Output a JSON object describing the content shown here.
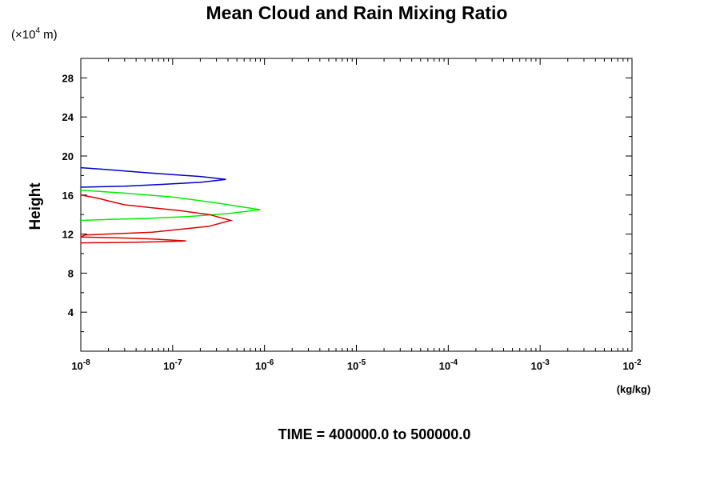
{
  "chart_data": {
    "type": "line",
    "title": "Mean Cloud and Rain Mixing Ratio",
    "ylabel": "Height",
    "y_scale_label": {
      "prefix": "(×10",
      "exponent": "4",
      "suffix": " m)"
    },
    "xlabel": "(kg/kg)",
    "x_scale": "log",
    "xlim": [
      1e-08,
      0.01
    ],
    "ylim": [
      0,
      30
    ],
    "x_ticks": [
      {
        "value": 1e-08,
        "base": "10",
        "exp": "-8"
      },
      {
        "value": 1e-07,
        "base": "10",
        "exp": "-7"
      },
      {
        "value": 1e-06,
        "base": "10",
        "exp": "-6"
      },
      {
        "value": 1e-05,
        "base": "10",
        "exp": "-5"
      },
      {
        "value": 0.0001,
        "base": "10",
        "exp": "-4"
      },
      {
        "value": 0.001,
        "base": "10",
        "exp": "-3"
      },
      {
        "value": 0.01,
        "base": "10",
        "exp": "-2"
      }
    ],
    "y_ticks": [
      {
        "value": 4,
        "label": "4"
      },
      {
        "value": 8,
        "label": "8"
      },
      {
        "value": 12,
        "label": "12"
      },
      {
        "value": 16,
        "label": "16"
      },
      {
        "value": 20,
        "label": "20"
      },
      {
        "value": 24,
        "label": "24"
      },
      {
        "value": 28,
        "label": "28"
      }
    ],
    "grid": false,
    "legend": "none",
    "series": [
      {
        "color": "#0000cc",
        "points": [
          [
            1e-08,
            18.8
          ],
          [
            2e-08,
            18.6
          ],
          [
            5e-08,
            18.3
          ],
          [
            1e-07,
            18.1
          ],
          [
            2e-07,
            17.9
          ],
          [
            3.8e-07,
            17.6
          ],
          [
            2e-07,
            17.3
          ],
          [
            8e-08,
            17.1
          ],
          [
            3e-08,
            16.9
          ],
          [
            1e-08,
            16.8
          ]
        ]
      },
      {
        "color": "#00ee00",
        "points": [
          [
            1e-08,
            16.5
          ],
          [
            3e-08,
            16.2
          ],
          [
            1e-07,
            15.8
          ],
          [
            3e-07,
            15.2
          ],
          [
            9e-07,
            14.5
          ],
          [
            4e-07,
            14.1
          ],
          [
            1.5e-07,
            13.8
          ],
          [
            5e-08,
            13.6
          ],
          [
            2e-08,
            13.5
          ],
          [
            1e-08,
            13.4
          ]
        ]
      },
      {
        "color": "#dd0000",
        "points": [
          [
            1e-08,
            16.0
          ],
          [
            1.5e-08,
            15.7
          ],
          [
            2e-08,
            15.4
          ],
          [
            3e-08,
            15.0
          ],
          [
            6e-08,
            14.7
          ],
          [
            1.2e-07,
            14.4
          ],
          [
            2.5e-07,
            14.0
          ],
          [
            4.3e-07,
            13.4
          ],
          [
            2.5e-07,
            12.8
          ],
          [
            6e-08,
            12.2
          ],
          [
            1.1e-08,
            11.9
          ],
          [
            1e-08,
            11.7
          ],
          [
            3e-08,
            11.6
          ],
          [
            6e-08,
            11.5
          ],
          [
            1.4e-07,
            11.3
          ],
          [
            6e-08,
            11.2
          ],
          [
            3e-08,
            11.15
          ],
          [
            1e-08,
            11.1
          ]
        ]
      }
    ]
  },
  "footer": {
    "time_label": "TIME = 400000.0 to 500000.0"
  }
}
